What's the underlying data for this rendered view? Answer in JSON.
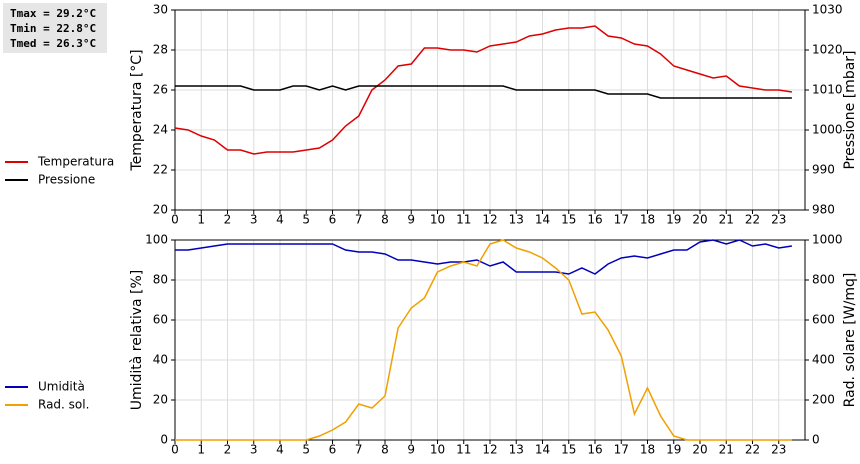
{
  "chart_data": [
    {
      "type": "line",
      "ylabel": "Temperatura [°C]",
      "y2label": "Pressione [mbar]",
      "annotations": [
        "Tmax = 29.2°C",
        "Tmin = 22.8°C",
        "Tmed = 26.3°C"
      ],
      "legend": "left",
      "grid": true,
      "x": [
        0,
        0.5,
        1,
        1.5,
        2,
        2.5,
        3,
        3.5,
        4,
        4.5,
        5,
        5.5,
        6,
        6.5,
        7,
        7.5,
        8,
        8.5,
        9,
        9.5,
        10,
        10.5,
        11,
        11.5,
        12,
        12.5,
        13,
        13.5,
        14,
        14.5,
        15,
        15.5,
        16,
        16.5,
        17,
        17.5,
        18,
        18.5,
        19,
        19.5,
        20,
        20.5,
        21,
        21.5,
        22,
        22.5,
        23,
        23.5
      ],
      "xlim": [
        0,
        24
      ],
      "xticks": [
        0,
        1,
        2,
        3,
        4,
        5,
        6,
        7,
        8,
        9,
        10,
        11,
        12,
        13,
        14,
        15,
        16,
        17,
        18,
        19,
        20,
        21,
        22,
        23
      ],
      "ylim": [
        20,
        30
      ],
      "yticks": [
        20,
        22,
        24,
        26,
        28,
        30
      ],
      "y2lim": [
        980,
        1030
      ],
      "y2ticks": [
        980,
        990,
        1000,
        1010,
        1020,
        1030
      ],
      "series": [
        {
          "name": "Temperatura",
          "color": "#dd0000",
          "values": [
            24.1,
            24.0,
            23.7,
            23.5,
            23.0,
            23.0,
            22.8,
            22.9,
            22.9,
            22.9,
            23.0,
            23.1,
            23.5,
            24.2,
            24.7,
            26.0,
            26.5,
            27.2,
            27.3,
            28.1,
            28.1,
            28.0,
            28.0,
            27.9,
            28.2,
            28.3,
            28.4,
            28.7,
            28.8,
            29.0,
            29.1,
            29.1,
            29.2,
            28.7,
            28.6,
            28.3,
            28.2,
            27.8,
            27.2,
            27.0,
            26.8,
            26.6,
            26.7,
            26.2,
            26.1,
            26.0,
            26.0,
            25.9
          ]
        },
        {
          "name": "Pressione",
          "color": "#000000",
          "axis": "y2",
          "values": [
            1011,
            1011,
            1011,
            1011,
            1011,
            1011,
            1010,
            1010,
            1010,
            1011,
            1011,
            1010,
            1011,
            1010,
            1011,
            1011,
            1011,
            1011,
            1011,
            1011,
            1011,
            1011,
            1011,
            1011,
            1011,
            1011,
            1010,
            1010,
            1010,
            1010,
            1010,
            1010,
            1010,
            1009,
            1009,
            1009,
            1009,
            1008,
            1008,
            1008,
            1008,
            1008,
            1008,
            1008,
            1008,
            1008,
            1008,
            1008
          ]
        }
      ]
    },
    {
      "type": "line",
      "ylabel": "Umidità relativa [%]",
      "y2label": "Rad. solare [W/mq]",
      "legend": "left",
      "grid": true,
      "x": [
        0,
        0.5,
        1,
        1.5,
        2,
        2.5,
        3,
        3.5,
        4,
        4.5,
        5,
        5.5,
        6,
        6.5,
        7,
        7.5,
        8,
        8.5,
        9,
        9.5,
        10,
        10.5,
        11,
        11.5,
        12,
        12.5,
        13,
        13.5,
        14,
        14.5,
        15,
        15.5,
        16,
        16.5,
        17,
        17.5,
        18,
        18.5,
        19,
        19.5,
        20,
        20.5,
        21,
        21.5,
        22,
        22.5,
        23,
        23.5
      ],
      "xlim": [
        0,
        24
      ],
      "xticks": [
        0,
        1,
        2,
        3,
        4,
        5,
        6,
        7,
        8,
        9,
        10,
        11,
        12,
        13,
        14,
        15,
        16,
        17,
        18,
        19,
        20,
        21,
        22,
        23
      ],
      "ylim": [
        0,
        100
      ],
      "yticks": [
        0,
        20,
        40,
        60,
        80,
        100
      ],
      "y2lim": [
        0,
        1000
      ],
      "y2ticks": [
        0,
        200,
        400,
        600,
        800,
        1000
      ],
      "series": [
        {
          "name": "Umidità",
          "color": "#0000bb",
          "values": [
            95,
            95,
            96,
            97,
            98,
            98,
            98,
            98,
            98,
            98,
            98,
            98,
            98,
            95,
            94,
            94,
            93,
            90,
            90,
            89,
            88,
            89,
            89,
            90,
            87,
            89,
            84,
            84,
            84,
            84,
            83,
            86,
            83,
            88,
            91,
            92,
            91,
            93,
            95,
            95,
            99,
            100,
            98,
            100,
            97,
            98,
            96,
            97
          ]
        },
        {
          "name": "Rad. sol.",
          "color": "#f0a000",
          "axis": "y2",
          "values": [
            0,
            0,
            0,
            0,
            0,
            0,
            0,
            0,
            0,
            0,
            0,
            20,
            50,
            90,
            180,
            160,
            220,
            560,
            660,
            710,
            840,
            870,
            890,
            870,
            980,
            1000,
            960,
            940,
            910,
            860,
            800,
            630,
            640,
            550,
            420,
            130,
            260,
            120,
            20,
            0,
            0,
            0,
            0,
            0,
            0,
            0,
            0,
            0
          ]
        }
      ]
    }
  ]
}
